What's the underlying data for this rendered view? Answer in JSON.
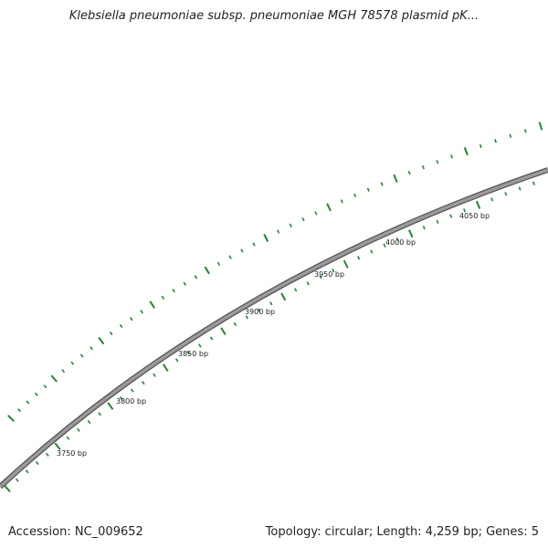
{
  "title": "Klebsiella pneumoniae subsp. pneumoniae MGH 78578 plasmid pK...",
  "footer": {
    "accession_label": "Accession:",
    "accession": "NC_009652",
    "topology_label": "Topology:",
    "topology": "circular",
    "length_label": "Length:",
    "length": "4,259 bp",
    "genes_label": "Genes:",
    "genes": "5"
  },
  "colors": {
    "backbone": "#8a8a8a",
    "backbone_edge": "#555555",
    "tick": "#1f8a2a",
    "label": "#222222"
  },
  "scale": {
    "unit": "bp",
    "labels": [
      "3750 bp",
      "3800 bp",
      "3850 bp",
      "3900 bp",
      "3950 bp",
      "4000 bp",
      "4050 bp"
    ]
  }
}
